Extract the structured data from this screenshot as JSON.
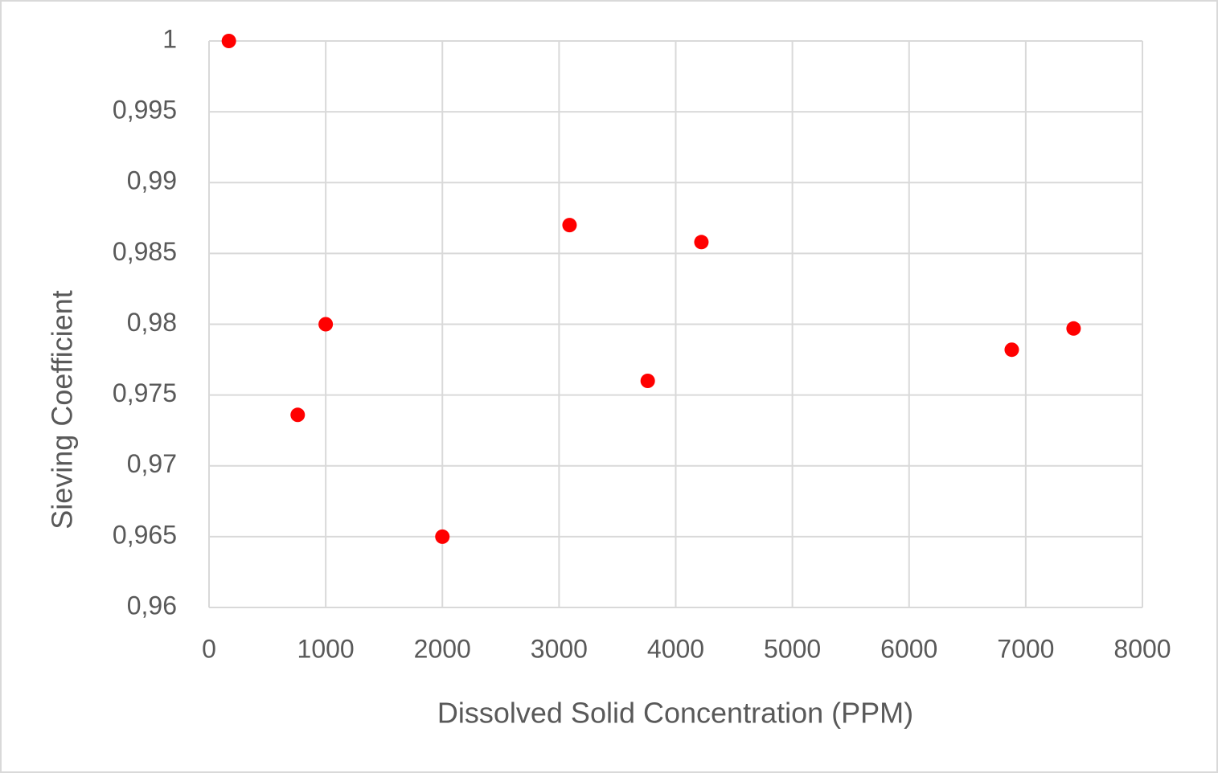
{
  "chart_data": {
    "type": "scatter",
    "xlabel": "Dissolved Solid Concentration (PPM)",
    "ylabel": "Sieving Coefficient",
    "x": [
      170,
      760,
      1000,
      2000,
      3090,
      3760,
      4220,
      6880,
      7410
    ],
    "series": [
      {
        "color": "#ff0000",
        "values": [
          1,
          0.9736,
          0.98,
          0.965,
          0.987,
          0.976,
          0.9858,
          0.9782,
          0.9797
        ]
      }
    ],
    "xlim": [
      0,
      8000
    ],
    "xticks": [
      0,
      1000,
      2000,
      3000,
      4000,
      5000,
      6000,
      7000,
      8000
    ],
    "ylim": [
      0.96,
      1
    ],
    "yticks": [
      {
        "value": 0.96,
        "label": "0,96"
      },
      {
        "value": 0.965,
        "label": "0,965"
      },
      {
        "value": 0.97,
        "label": "0,97"
      },
      {
        "value": 0.975,
        "label": "0,975"
      },
      {
        "value": 0.98,
        "label": "0,98"
      },
      {
        "value": 0.985,
        "label": "0,985"
      },
      {
        "value": 0.99,
        "label": "0,99"
      },
      {
        "value": 0.995,
        "label": "0,995"
      },
      1
    ],
    "grid": true
  }
}
